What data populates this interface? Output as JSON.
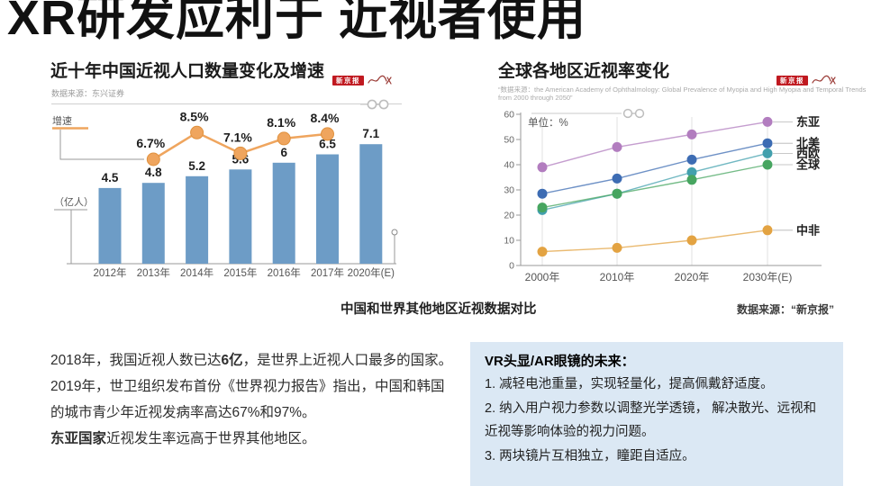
{
  "page": {
    "title": "XR研发应利于 近视者使用"
  },
  "caption": {
    "text": "中国和世界其他地区近视数据对比",
    "source": "数据来源：“新京报”"
  },
  "paragraph": {
    "lines": [
      [
        {
          "t": "2018年，我国近视人数已达"
        },
        {
          "t": "6亿",
          "b": 1
        },
        {
          "t": "，是世界上近视人口最多的国家。"
        }
      ],
      [
        {
          "t": "2019年，世卫组织发布首份《世界视力报告》指出，中国和韩国"
        }
      ],
      [
        {
          "t": "的城市青少年近视发病率高达67%和97%。"
        }
      ],
      [
        {
          "t": "东亚国家",
          "b": 1
        },
        {
          "t": "近视发生率远高于世界其他地区。"
        }
      ]
    ]
  },
  "vr_box": {
    "title": "VR头显/AR眼镜的未来：",
    "items": [
      "1. 减轻电池重量，实现轻量化，提高佩戴舒适度。",
      "2. 纳入用户视力参数以调整光学透镜， 解决散光、远视和近视等影响体验的视力问题。",
      "3. 两块镜片互相独立，瞳距自适应。"
    ]
  },
  "chart_data": [
    {
      "type": "bar",
      "title": "近十年中国近视人口数量变化及增速",
      "source": "数据来源：东兴证券",
      "badge": "新京报",
      "categories": [
        "2012年",
        "2013年",
        "2014年",
        "2015年",
        "2016年",
        "2017年",
        "2020年(E)"
      ],
      "bars": {
        "name": "近视人口",
        "axis_label": "（亿人）",
        "values": [
          4.5,
          4.8,
          5.2,
          5.6,
          6,
          6.5,
          7.1
        ],
        "value_labels": [
          "4.5",
          "4.8",
          "5.2",
          "5.6",
          "6",
          "6.5",
          "7.1"
        ],
        "color": "#6d9cc6"
      },
      "line": {
        "name": "增速",
        "start_index": 1,
        "values": [
          6.7,
          8.5,
          7.1,
          8.1,
          8.4
        ],
        "value_labels": [
          "6.7%",
          "8.5%",
          "7.1%",
          "8.1%",
          "8.4%"
        ],
        "color": "#efa55e",
        "marker_edge": "#e0913e"
      }
    },
    {
      "type": "line",
      "title": "全球各地区近视率变化",
      "source": "“数据来源：the American Academy of Ophthalmology: Global Prevalence of Myopia and High Myopia and Temporal Trends from 2000 through 2050”",
      "badge": "新京报",
      "unit_label": "单位：%",
      "x": [
        "2000年",
        "2010年",
        "2020年",
        "2030年(E)"
      ],
      "ylim": [
        0,
        60
      ],
      "yticks": [
        0,
        10,
        20,
        30,
        40,
        50,
        60
      ],
      "grid": "vertical",
      "legend_position": "right",
      "series": [
        {
          "name": "东亚",
          "color": "#b27dbf",
          "values": [
            39,
            47,
            52,
            57
          ]
        },
        {
          "name": "北美",
          "color": "#3d6cb3",
          "values": [
            28.5,
            34.5,
            42,
            48.5
          ]
        },
        {
          "name": "西欧",
          "color": "#42a0ad",
          "values": [
            22,
            28.5,
            37,
            44.5
          ]
        },
        {
          "name": "全球",
          "color": "#47a560",
          "values": [
            23,
            28.5,
            34,
            40
          ]
        },
        {
          "name": "中非",
          "color": "#e3a342",
          "values": [
            5.5,
            7,
            10,
            14
          ]
        }
      ]
    }
  ]
}
